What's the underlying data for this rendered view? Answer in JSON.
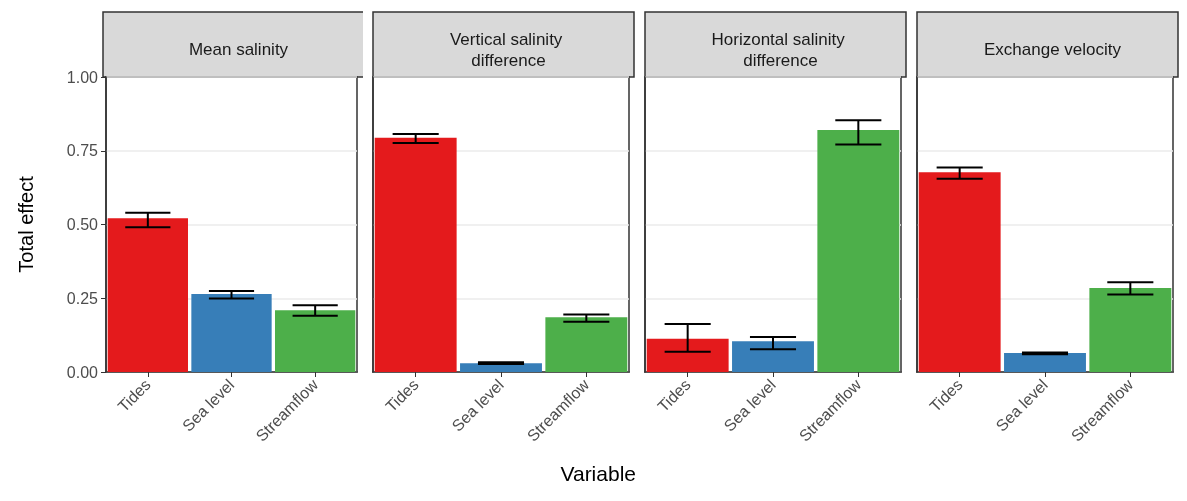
{
  "chart_data": [
    {
      "type": "bar",
      "title": "Mean salinity",
      "ylabel": "Total effect",
      "categories": [
        "Tides",
        "Sea level",
        "Streamflow"
      ],
      "values": [
        0.521,
        0.264,
        0.209
      ],
      "colors": [
        "#e41a1c",
        "#377eb8",
        "#4daf4a"
      ],
      "errors": [
        [
          0.491,
          0.54
        ],
        [
          0.249,
          0.275
        ],
        [
          0.191,
          0.226
        ]
      ],
      "ylim": [
        0,
        1
      ],
      "yticks": [
        {
          "value": 0,
          "label": "0.00"
        },
        {
          "value": 0.25,
          "label": "0.25"
        },
        {
          "value": 0.5,
          "label": "0.50"
        },
        {
          "value": 0.75,
          "label": "0.75"
        },
        {
          "value": 1,
          "label": "1.00"
        }
      ],
      "grid": true
    },
    {
      "type": "bar",
      "title": "Vertical salinity difference",
      "xlabel": "Variable",
      "categories": [
        "Tides",
        "Sea level",
        "Streamflow"
      ],
      "values": [
        0.794,
        0.03,
        0.186
      ],
      "colors": [
        "#e41a1c",
        "#377eb8",
        "#4daf4a"
      ],
      "errors": [
        [
          0.776,
          0.807
        ],
        0.003,
        [
          0.17,
          0.195
        ]
      ],
      "ylim": [
        0,
        1
      ],
      "yticks": [
        0,
        0.25,
        0.5,
        0.75,
        1
      ],
      "grid": true,
      "tick_labels": "x"
    },
    {
      "type": "bar",
      "title": "Horizontal salinity difference",
      "categories": [
        "Tides",
        "Sea level",
        "Streamflow"
      ],
      "values": [
        0.113,
        0.104,
        0.82
      ],
      "colors": [
        "#e41a1c",
        "#377eb8",
        "#4daf4a"
      ],
      "errors": [
        [
          0.069,
          0.163
        ],
        [
          0.077,
          0.119
        ],
        [
          0.771,
          0.853
        ]
      ],
      "ylim": [
        0,
        1
      ],
      "yticks": [
        0,
        0.25,
        0.5,
        0.75,
        1
      ],
      "grid": true,
      "tick_labels": "x"
    },
    {
      "type": "bar",
      "title": "Exchange velocity",
      "categories": [
        "Tides",
        "Sea level",
        "Streamflow"
      ],
      "values": [
        0.677,
        0.064,
        0.285
      ],
      "colors": [
        "#e41a1c",
        "#377eb8",
        "#4daf4a"
      ],
      "errors": [
        [
          0.655,
          0.693
        ],
        [
          0.06,
          0.066
        ],
        [
          0.263,
          0.304
        ]
      ],
      "ylim": [
        0,
        1
      ],
      "yticks": [
        0,
        0.25,
        0.5,
        0.75,
        1
      ],
      "grid": true,
      "tick_labels": "x"
    }
  ]
}
